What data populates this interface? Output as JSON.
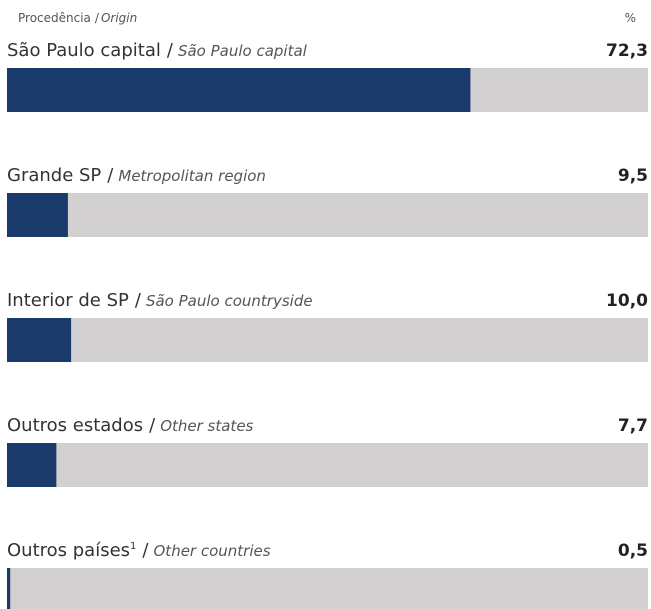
{
  "chart_data": {
    "type": "bar",
    "orientation": "horizontal",
    "header": {
      "label": "Procedência",
      "separator": "/",
      "label_en": "Origin",
      "unit": "%"
    },
    "separator": "/",
    "categories": [
      "São Paulo capital",
      "Grande SP",
      "Interior de SP",
      "Outros estados",
      "Outros países"
    ],
    "categories_en": [
      "São Paulo capital",
      "Metropolitan region",
      "São Paulo countryside",
      "Other states",
      "Other countries"
    ],
    "category_notes": [
      null,
      null,
      null,
      null,
      "1"
    ],
    "values": [
      72.3,
      9.5,
      10.0,
      7.7,
      0.5
    ],
    "value_labels": [
      "72,3",
      "9,5",
      "10,0",
      "7,7",
      "0,5"
    ],
    "xlim": [
      0,
      100
    ],
    "color": "#1a3a6b",
    "track_color": "#d2d0d1"
  }
}
